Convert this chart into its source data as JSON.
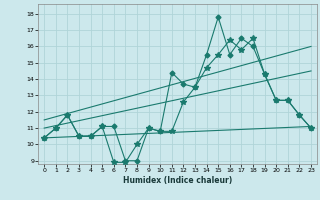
{
  "xlabel": "Humidex (Indice chaleur)",
  "bg_color": "#cce8ec",
  "grid_color": "#b0d4d8",
  "line_color": "#1a7a6e",
  "xlim": [
    -0.5,
    23.5
  ],
  "ylim": [
    8.8,
    18.6
  ],
  "xticks": [
    0,
    1,
    2,
    3,
    4,
    5,
    6,
    7,
    8,
    9,
    10,
    11,
    12,
    13,
    14,
    15,
    16,
    17,
    18,
    19,
    20,
    21,
    22,
    23
  ],
  "yticks": [
    9,
    10,
    11,
    12,
    13,
    14,
    15,
    16,
    17,
    18
  ],
  "series1_x": [
    0,
    1,
    2,
    3,
    4,
    5,
    6,
    7,
    8,
    9,
    10,
    11,
    12,
    13,
    14,
    15,
    16,
    17,
    18,
    19,
    20,
    21,
    22,
    23
  ],
  "series1_y": [
    10.4,
    11.0,
    11.8,
    10.5,
    10.5,
    11.1,
    11.1,
    9.0,
    9.0,
    11.0,
    10.8,
    14.4,
    13.7,
    13.5,
    15.5,
    17.8,
    15.5,
    16.5,
    16.0,
    14.3,
    12.7,
    12.7,
    11.8,
    11.0
  ],
  "series2_x": [
    0,
    1,
    2,
    3,
    4,
    5,
    6,
    7,
    8,
    9,
    10,
    11,
    12,
    13,
    14,
    15,
    16,
    17,
    18,
    19,
    20,
    21,
    22,
    23
  ],
  "series2_y": [
    10.4,
    11.0,
    11.8,
    10.5,
    10.5,
    11.1,
    8.9,
    8.9,
    10.0,
    11.0,
    10.8,
    10.8,
    12.6,
    13.5,
    14.7,
    15.5,
    16.4,
    15.8,
    16.5,
    14.3,
    12.7,
    12.7,
    11.8,
    11.0
  ],
  "trend1_x": [
    0,
    23
  ],
  "trend1_y": [
    11.5,
    16.0
  ],
  "trend2_x": [
    0,
    23
  ],
  "trend2_y": [
    11.0,
    14.5
  ],
  "trend3_x": [
    0,
    23
  ],
  "trend3_y": [
    10.4,
    11.1
  ]
}
